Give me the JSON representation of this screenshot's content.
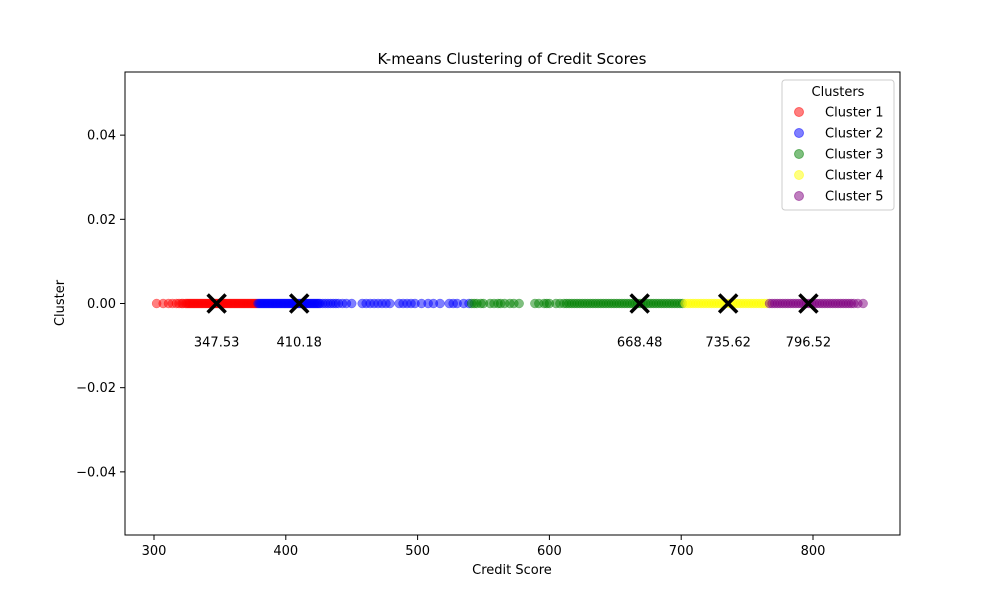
{
  "chart_data": {
    "type": "scatter",
    "title": "K-means Clustering of Credit Scores",
    "xlabel": "Credit Score",
    "ylabel": "Cluster",
    "xlim": [
      278,
      866
    ],
    "ylim": [
      -0.055,
      0.055
    ],
    "xticks": [
      300,
      400,
      500,
      600,
      700,
      800
    ],
    "yticks": [
      0.04,
      0.02,
      0.0,
      -0.02,
      -0.04
    ],
    "xtick_labels": [
      "300",
      "400",
      "500",
      "600",
      "700",
      "800"
    ],
    "ytick_labels": [
      "0.04",
      "0.02",
      "0.00",
      "−0.02",
      "−0.04"
    ],
    "grid": false,
    "legend": {
      "title": "Clusters",
      "placement": "top-right"
    },
    "series": [
      {
        "name": "Cluster 1",
        "color": "#ff0000",
        "x": [
          302,
          307,
          311,
          314,
          317,
          319,
          321,
          322,
          324,
          325,
          326,
          327,
          328,
          329,
          330,
          331,
          332,
          333,
          334,
          335,
          336,
          337,
          338,
          339,
          340,
          341,
          342,
          343,
          344,
          345,
          346,
          347,
          348,
          349,
          350,
          351,
          352,
          353,
          354,
          355,
          356,
          357,
          358,
          359,
          360,
          361,
          362,
          363,
          364,
          365,
          366,
          367,
          368,
          369,
          370,
          371,
          372,
          373,
          374,
          375,
          376,
          377,
          378
        ]
      },
      {
        "name": "Cluster 2",
        "color": "#0000ff",
        "x": [
          379,
          380,
          381,
          382,
          383,
          384,
          385,
          386,
          387,
          388,
          389,
          390,
          391,
          392,
          393,
          394,
          395,
          396,
          397,
          398,
          399,
          400,
          401,
          402,
          403,
          404,
          405,
          406,
          407,
          408,
          409,
          410,
          411,
          412,
          413,
          414,
          415,
          416,
          417,
          418,
          419,
          420,
          421,
          422,
          423,
          424,
          425,
          426,
          428,
          430,
          432,
          434,
          436,
          438,
          440,
          443,
          446,
          450,
          458,
          461,
          464,
          467,
          470,
          473,
          476,
          479,
          486,
          489,
          492,
          495,
          498,
          503,
          508,
          512,
          517,
          524,
          527,
          530,
          535,
          539
        ]
      },
      {
        "name": "Cluster 3",
        "color": "#008000",
        "x": [
          541,
          543,
          545,
          548,
          550,
          555,
          558,
          561,
          563,
          566,
          570,
          573,
          577,
          589,
          592,
          596,
          598,
          600,
          605,
          608,
          611,
          613,
          615,
          617,
          619,
          621,
          623,
          625,
          627,
          629,
          631,
          633,
          635,
          637,
          639,
          641,
          643,
          645,
          647,
          649,
          651,
          653,
          655,
          657,
          659,
          661,
          663,
          665,
          667,
          669,
          671,
          673,
          675,
          677,
          679,
          681,
          683,
          685,
          687,
          689,
          691,
          693,
          695,
          697,
          699,
          701
        ]
      },
      {
        "name": "Cluster 4",
        "color": "#ffff00",
        "x": [
          703,
          705,
          707,
          709,
          711,
          713,
          715,
          717,
          719,
          721,
          723,
          725,
          727,
          729,
          731,
          733,
          735,
          737,
          739,
          741,
          743,
          745,
          747,
          749,
          751,
          753,
          755,
          757,
          759,
          761,
          763,
          765
        ]
      },
      {
        "name": "Cluster 5",
        "color": "#800080",
        "x": [
          767,
          769,
          771,
          773,
          775,
          777,
          779,
          781,
          783,
          785,
          787,
          789,
          791,
          793,
          795,
          797,
          799,
          801,
          803,
          805,
          807,
          809,
          811,
          813,
          815,
          817,
          819,
          821,
          823,
          825,
          827,
          829,
          831,
          834,
          838
        ]
      }
    ],
    "centroids": {
      "x": [
        347.53,
        410.18,
        668.48,
        735.62,
        796.52
      ],
      "labels": [
        "347.53",
        "410.18",
        "668.48",
        "735.62",
        "796.52"
      ]
    }
  }
}
